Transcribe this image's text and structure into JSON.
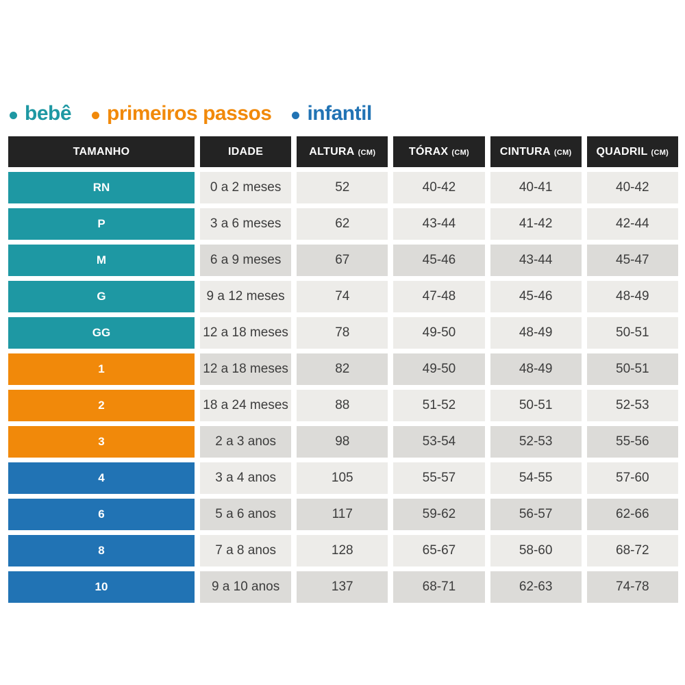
{
  "legend": {
    "items": [
      {
        "id": "bebe",
        "label": "bebê",
        "color": "#1e98a3"
      },
      {
        "id": "primeiros-passos",
        "label": "primeiros passos",
        "color": "#f1890a"
      },
      {
        "id": "infantil",
        "label": "infantil",
        "color": "#2173b4"
      }
    ]
  },
  "colors": {
    "bebe": "#1e98a3",
    "primeiros-passos": "#f1890a",
    "infantil": "#2173b4",
    "header_bg": "#232323",
    "row_light": "#edece9",
    "row_dark": "#dcdbd8"
  },
  "table": {
    "columns": [
      {
        "key": "tamanho",
        "label": "TAMANHO",
        "unit": ""
      },
      {
        "key": "idade",
        "label": "IDADE",
        "unit": ""
      },
      {
        "key": "altura",
        "label": "ALTURA",
        "unit": "(CM)"
      },
      {
        "key": "torax",
        "label": "TÓRAX",
        "unit": "(CM)"
      },
      {
        "key": "cintura",
        "label": "CINTURA",
        "unit": "(CM)"
      },
      {
        "key": "quadril",
        "label": "QUADRIL",
        "unit": "(CM)"
      }
    ],
    "rows": [
      {
        "size": "RN",
        "group": "bebe",
        "shade": "light",
        "idade": "0 a 2 meses",
        "altura": "52",
        "torax": "40-42",
        "cintura": "40-41",
        "quadril": "40-42"
      },
      {
        "size": "P",
        "group": "bebe",
        "shade": "light",
        "idade": "3 a 6 meses",
        "altura": "62",
        "torax": "43-44",
        "cintura": "41-42",
        "quadril": "42-44"
      },
      {
        "size": "M",
        "group": "bebe",
        "shade": "dark",
        "idade": "6 a 9 meses",
        "altura": "67",
        "torax": "45-46",
        "cintura": "43-44",
        "quadril": "45-47"
      },
      {
        "size": "G",
        "group": "bebe",
        "shade": "light",
        "idade": "9 a 12 meses",
        "altura": "74",
        "torax": "47-48",
        "cintura": "45-46",
        "quadril": "48-49"
      },
      {
        "size": "GG",
        "group": "bebe",
        "shade": "light",
        "idade": "12 a 18 meses",
        "altura": "78",
        "torax": "49-50",
        "cintura": "48-49",
        "quadril": "50-51"
      },
      {
        "size": "1",
        "group": "primeiros-passos",
        "shade": "dark",
        "idade": "12 a 18 meses",
        "altura": "82",
        "torax": "49-50",
        "cintura": "48-49",
        "quadril": "50-51"
      },
      {
        "size": "2",
        "group": "primeiros-passos",
        "shade": "light",
        "idade": "18 a 24 meses",
        "altura": "88",
        "torax": "51-52",
        "cintura": "50-51",
        "quadril": "52-53"
      },
      {
        "size": "3",
        "group": "primeiros-passos",
        "shade": "dark",
        "idade": "2 a 3 anos",
        "altura": "98",
        "torax": "53-54",
        "cintura": "52-53",
        "quadril": "55-56"
      },
      {
        "size": "4",
        "group": "infantil",
        "shade": "light",
        "idade": "3 a 4 anos",
        "altura": "105",
        "torax": "55-57",
        "cintura": "54-55",
        "quadril": "57-60"
      },
      {
        "size": "6",
        "group": "infantil",
        "shade": "dark",
        "idade": "5 a 6 anos",
        "altura": "117",
        "torax": "59-62",
        "cintura": "56-57",
        "quadril": "62-66"
      },
      {
        "size": "8",
        "group": "infantil",
        "shade": "light",
        "idade": "7 a 8 anos",
        "altura": "128",
        "torax": "65-67",
        "cintura": "58-60",
        "quadril": "68-72"
      },
      {
        "size": "10",
        "group": "infantil",
        "shade": "dark",
        "idade": "9 a 10 anos",
        "altura": "137",
        "torax": "68-71",
        "cintura": "62-63",
        "quadril": "74-78"
      }
    ]
  }
}
